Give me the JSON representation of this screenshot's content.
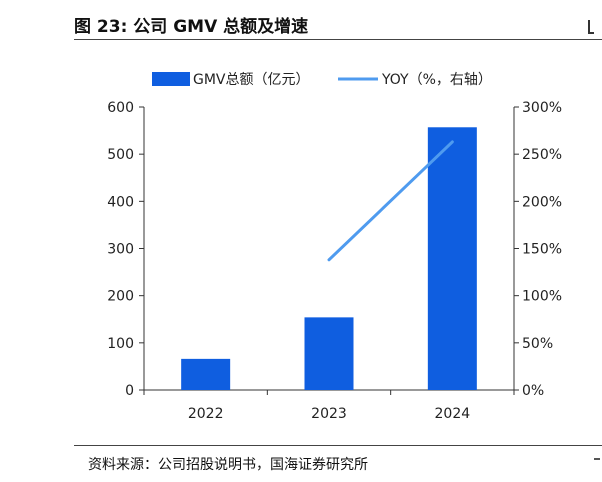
{
  "figure": {
    "title": "图 23:  公司 GMV 总额及增速",
    "source": "资料来源：公司招股说明书，国海证券研究所"
  },
  "colors": {
    "bar": "#0f5ee0",
    "line": "#4f9bef",
    "axis": "#333333"
  },
  "chart_data": {
    "type": "bar",
    "categories": [
      "2022",
      "2023",
      "2024"
    ],
    "series": [
      {
        "name": "GMV总额（亿元）",
        "type": "bar",
        "axis": "left",
        "values": [
          66,
          154,
          557
        ]
      },
      {
        "name": "YOY（%，右轴）",
        "type": "line",
        "axis": "right",
        "values": [
          null,
          138,
          263
        ]
      }
    ],
    "left_axis": {
      "ylim": [
        0,
        600
      ],
      "ticks": [
        "0",
        "100",
        "200",
        "300",
        "400",
        "500",
        "600"
      ]
    },
    "right_axis": {
      "ylim": [
        0,
        300
      ],
      "ticks": [
        "0%",
        "50%",
        "100%",
        "150%",
        "200%",
        "250%",
        "300%"
      ]
    },
    "legend": {
      "placement": "top-center"
    },
    "grid": false
  }
}
